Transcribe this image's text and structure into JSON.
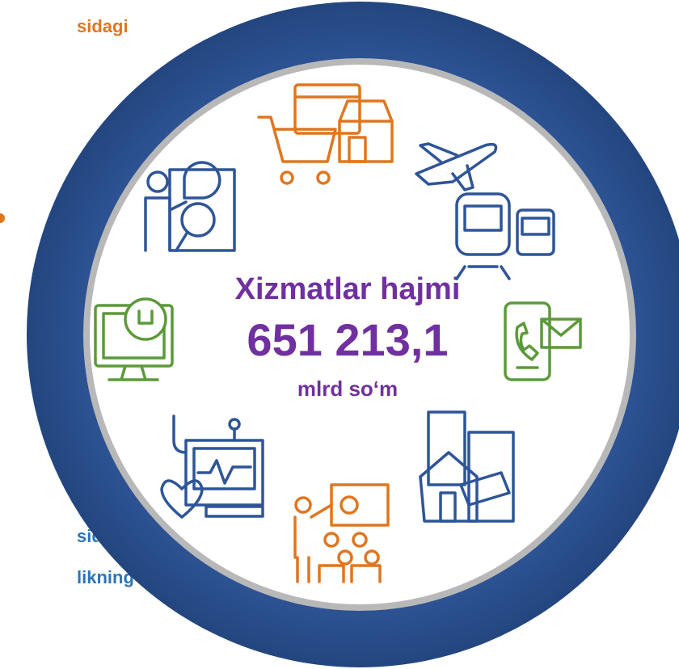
{
  "left_text": {
    "top": "sidagi",
    "bottom": [
      "sida",
      "likning"
    ]
  },
  "center": {
    "label": "Xizmatlar hajmi",
    "value": "651 213,1",
    "unit": "mlrd so‘m"
  }
}
